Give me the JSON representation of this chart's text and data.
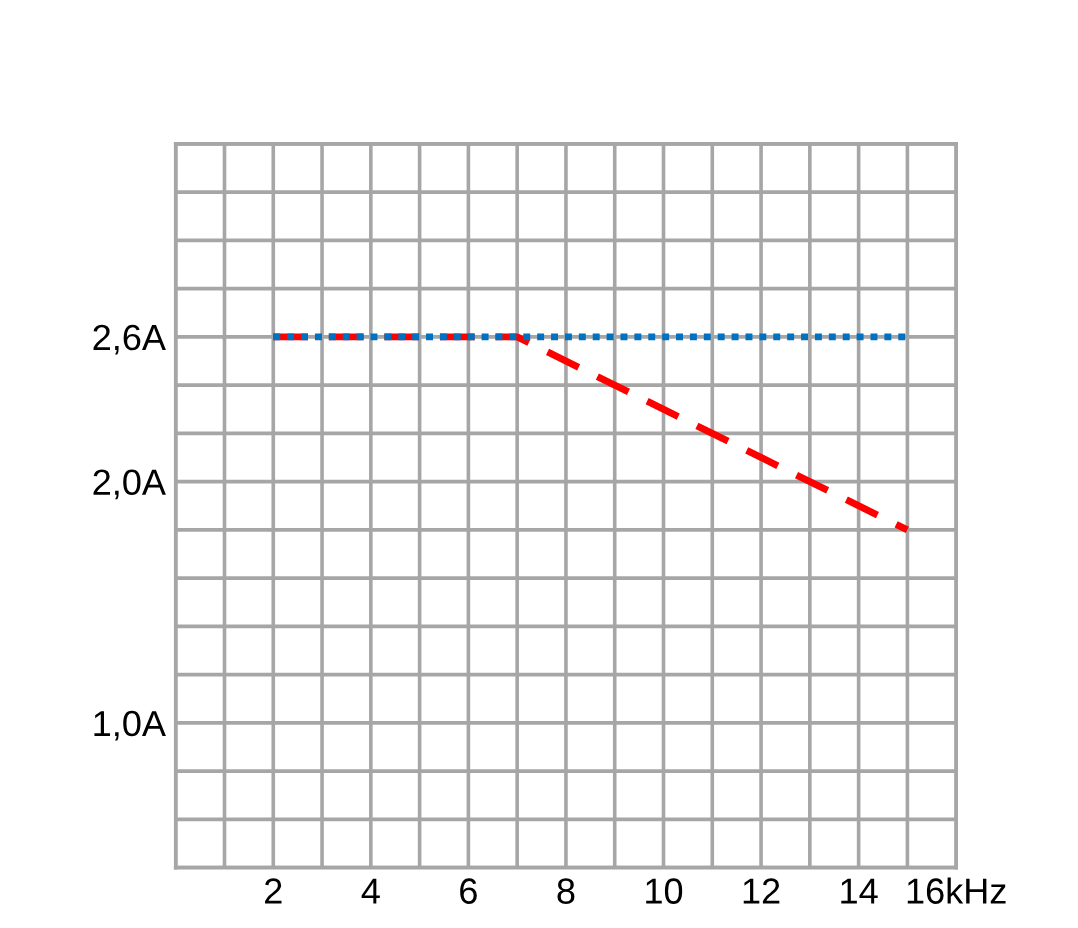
{
  "chart_data": {
    "type": "line",
    "x": [
      2,
      7,
      15
    ],
    "xlim": [
      0,
      16
    ],
    "ylim": [
      0.4,
      3.4
    ],
    "xticks": [
      {
        "value": 0,
        "label": null
      },
      {
        "value": 1,
        "label": null
      },
      2,
      {
        "value": 3,
        "label": null
      },
      4,
      {
        "value": 5,
        "label": null
      },
      6,
      {
        "value": 7,
        "label": null
      },
      8,
      {
        "value": 9,
        "label": null
      },
      10,
      {
        "value": 11,
        "label": null
      },
      12,
      {
        "value": 13,
        "label": null
      },
      14,
      {
        "value": 15,
        "label": null
      },
      {
        "value": 16,
        "label": "16kHz"
      }
    ],
    "yticks": [
      {
        "value": 0.4,
        "label": null
      },
      {
        "value": 0.6,
        "label": null
      },
      {
        "value": 0.8,
        "label": null
      },
      {
        "value": 1.0,
        "label": "1,0A"
      },
      {
        "value": 1.2,
        "label": null
      },
      {
        "value": 1.4,
        "label": null
      },
      {
        "value": 1.6,
        "label": null
      },
      {
        "value": 1.8,
        "label": null
      },
      {
        "value": 2.0,
        "label": "2,0A"
      },
      {
        "value": 2.2,
        "label": null
      },
      {
        "value": 2.4,
        "label": null
      },
      {
        "value": 2.6,
        "label": "2,6A"
      },
      {
        "value": 2.8,
        "label": null
      },
      {
        "value": 3.0,
        "label": null
      },
      {
        "value": 3.2,
        "label": null
      },
      {
        "value": 3.4,
        "label": null
      }
    ],
    "grid": true,
    "series": [
      {
        "color": "#ff0000",
        "line_style": "dashed",
        "values": [
          2.6,
          2.6,
          1.8
        ]
      },
      {
        "color": "#0070c0",
        "line_style": "dotted",
        "values": [
          2.6,
          2.6,
          2.6
        ]
      }
    ]
  }
}
